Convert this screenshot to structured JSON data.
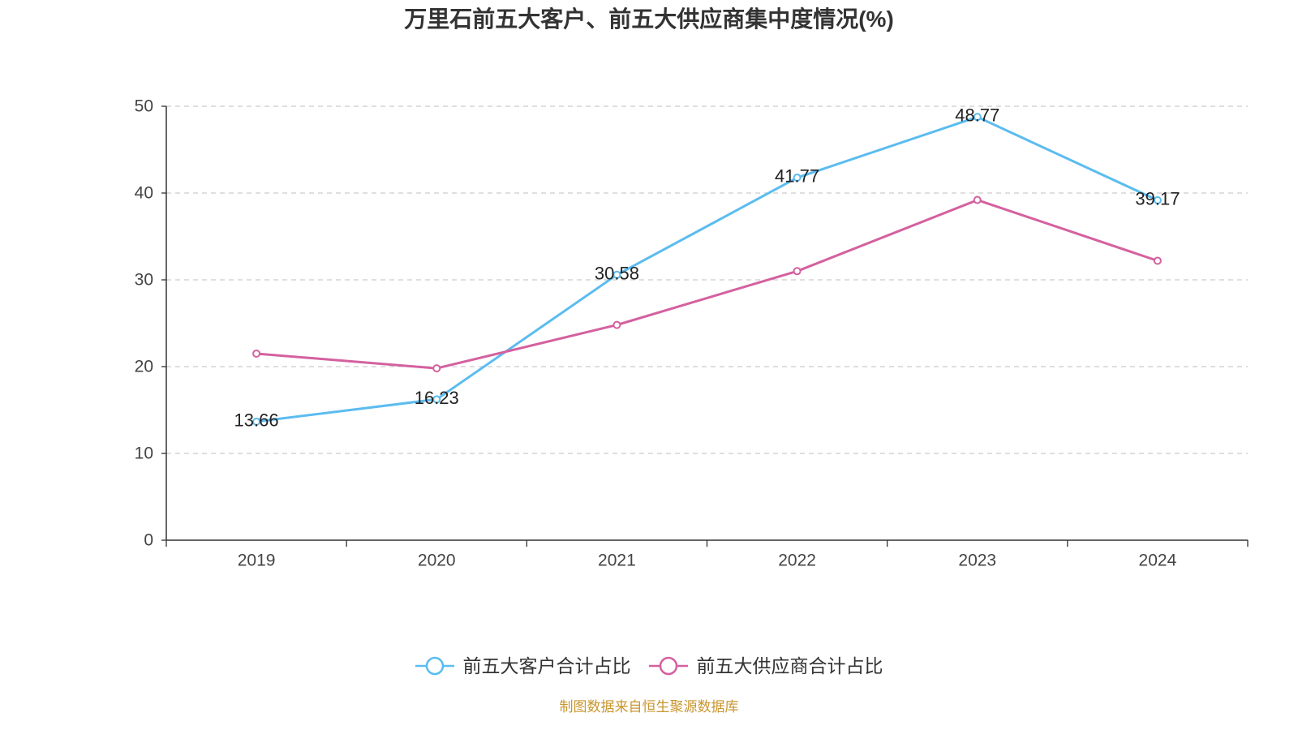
{
  "chart_data": {
    "type": "line",
    "title": "万里石前五大客户、前五大供应商集中度情况(%)",
    "categories": [
      "2019",
      "2020",
      "2021",
      "2022",
      "2023",
      "2024"
    ],
    "ylim": [
      0,
      50
    ],
    "yticks": [
      0,
      10,
      20,
      30,
      40,
      50
    ],
    "grid": true,
    "legend": "bottom-center",
    "series": [
      {
        "name": "前五大客户合计占比",
        "color": "#5bbcf0",
        "show_data_labels": true,
        "values": [
          13.66,
          16.23,
          30.58,
          41.77,
          48.77,
          39.17
        ]
      },
      {
        "name": "前五大供应商合计占比",
        "color": "#d4619f",
        "show_data_labels": false,
        "values": [
          21.5,
          19.8,
          24.8,
          31.0,
          39.2,
          32.2
        ]
      }
    ]
  },
  "source_note": "制图数据来自恒生聚源数据库"
}
